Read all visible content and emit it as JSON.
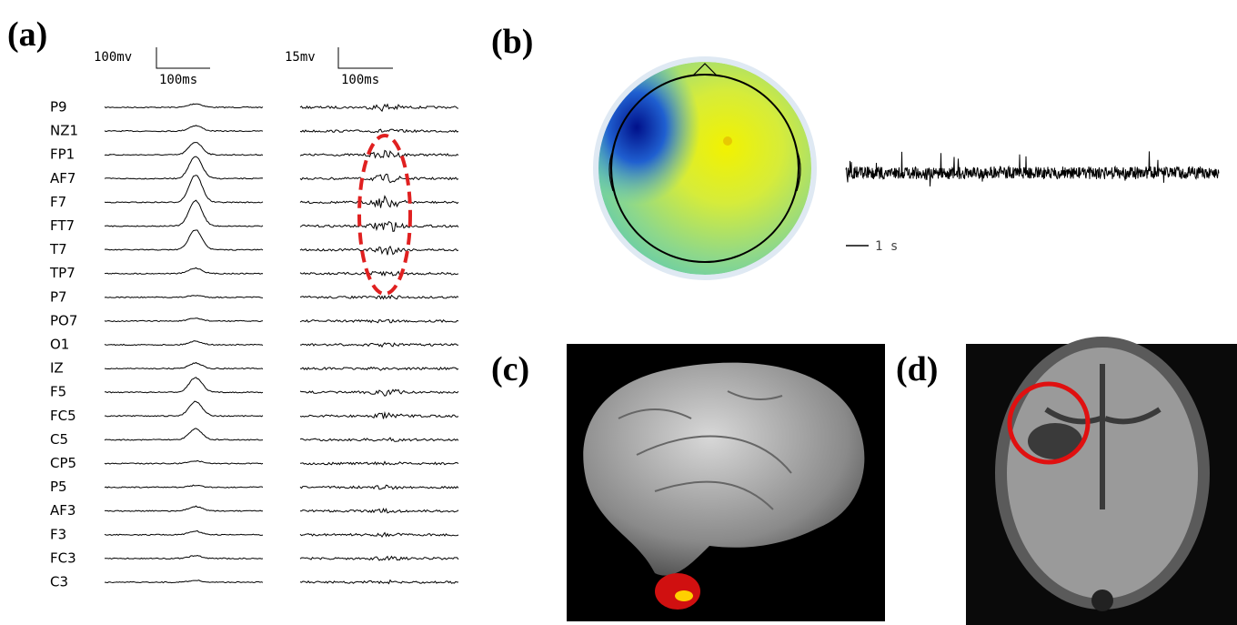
{
  "panels": [
    {
      "label": "(a)",
      "scale_bars": [
        {
          "amplitude": "100mv",
          "time": "100ms"
        },
        {
          "amplitude": "15mv",
          "time": "100ms"
        }
      ],
      "channels": [
        "P9",
        "NZ1",
        "FP1",
        "AF7",
        "F7",
        "FT7",
        "T7",
        "TP7",
        "P7",
        "PO7",
        "O1",
        "IZ",
        "F5",
        "FC5",
        "C5",
        "CP5",
        "P5",
        "AF3",
        "F3",
        "FC3",
        "C3"
      ]
    },
    {
      "label": "(b)",
      "scale_bar": "1 s"
    },
    {
      "label": "(c)"
    },
    {
      "label": "(d)"
    }
  ]
}
